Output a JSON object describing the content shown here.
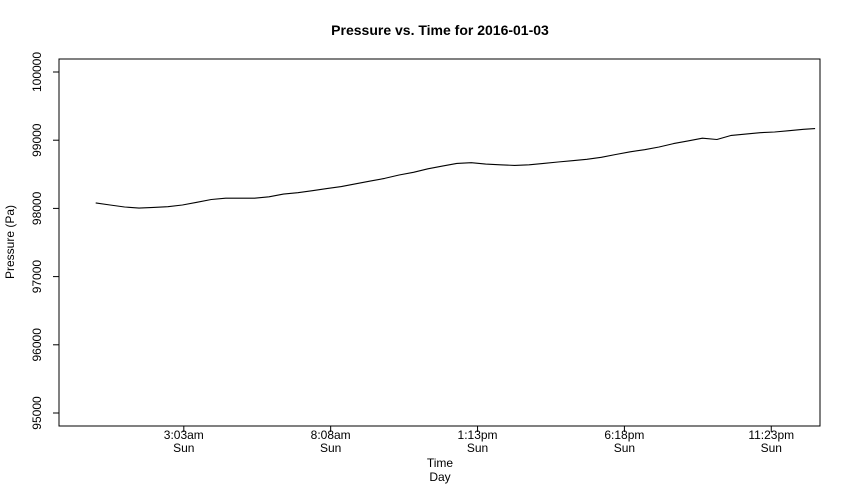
{
  "chart_data": {
    "type": "line",
    "title": "Pressure vs. Time for 2016-01-03",
    "xlabel": "Time",
    "xlabel2": "Day",
    "ylabel": "Pressure (Pa)",
    "ylim": [
      95000,
      100000
    ],
    "xlim_hours": [
      -1.27,
      25.07
    ],
    "yticks": [
      {
        "value": 95000,
        "label": "95000"
      },
      {
        "value": 96000,
        "label": "96000"
      },
      {
        "value": 97000,
        "label": "97000"
      },
      {
        "value": 98000,
        "label": "98000"
      },
      {
        "value": 99000,
        "label": "99000"
      },
      {
        "value": 100000,
        "label": "100000"
      }
    ],
    "xticks": [
      {
        "hour": 3.05,
        "label": "3:03am",
        "sublabel": "Sun"
      },
      {
        "hour": 8.133,
        "label": "8:08am",
        "sublabel": "Sun"
      },
      {
        "hour": 13.217,
        "label": "1:13pm",
        "sublabel": "Sun"
      },
      {
        "hour": 18.3,
        "label": "6:18pm",
        "sublabel": "Sun"
      },
      {
        "hour": 23.383,
        "label": "11:23pm",
        "sublabel": "Sun"
      }
    ],
    "grid": false,
    "series": [
      {
        "color": "#000000",
        "x": [
          0,
          0.5,
          1,
          1.5,
          2,
          2.5,
          3,
          3.5,
          4,
          4.5,
          5,
          5.5,
          6,
          6.5,
          7,
          7.5,
          8,
          8.5,
          9,
          9.5,
          10,
          10.5,
          11,
          11.5,
          12,
          12.5,
          13,
          13.5,
          14,
          14.5,
          15,
          15.5,
          16,
          16.5,
          17,
          17.5,
          18,
          18.5,
          19,
          19.5,
          20,
          20.5,
          21,
          21.5,
          22,
          22.5,
          23,
          23.5,
          24,
          24.5,
          24.9
        ],
        "y": [
          98080,
          98050,
          98020,
          98005,
          98015,
          98025,
          98050,
          98090,
          98130,
          98150,
          98150,
          98150,
          98170,
          98210,
          98230,
          98260,
          98290,
          98320,
          98360,
          98400,
          98440,
          98490,
          98530,
          98580,
          98620,
          98660,
          98670,
          98650,
          98640,
          98630,
          98640,
          98660,
          98680,
          98700,
          98720,
          98750,
          98790,
          98830,
          98860,
          98900,
          98950,
          98990,
          99030,
          99010,
          99070,
          99090,
          99110,
          99120,
          99140,
          99160,
          99170
        ]
      }
    ]
  }
}
